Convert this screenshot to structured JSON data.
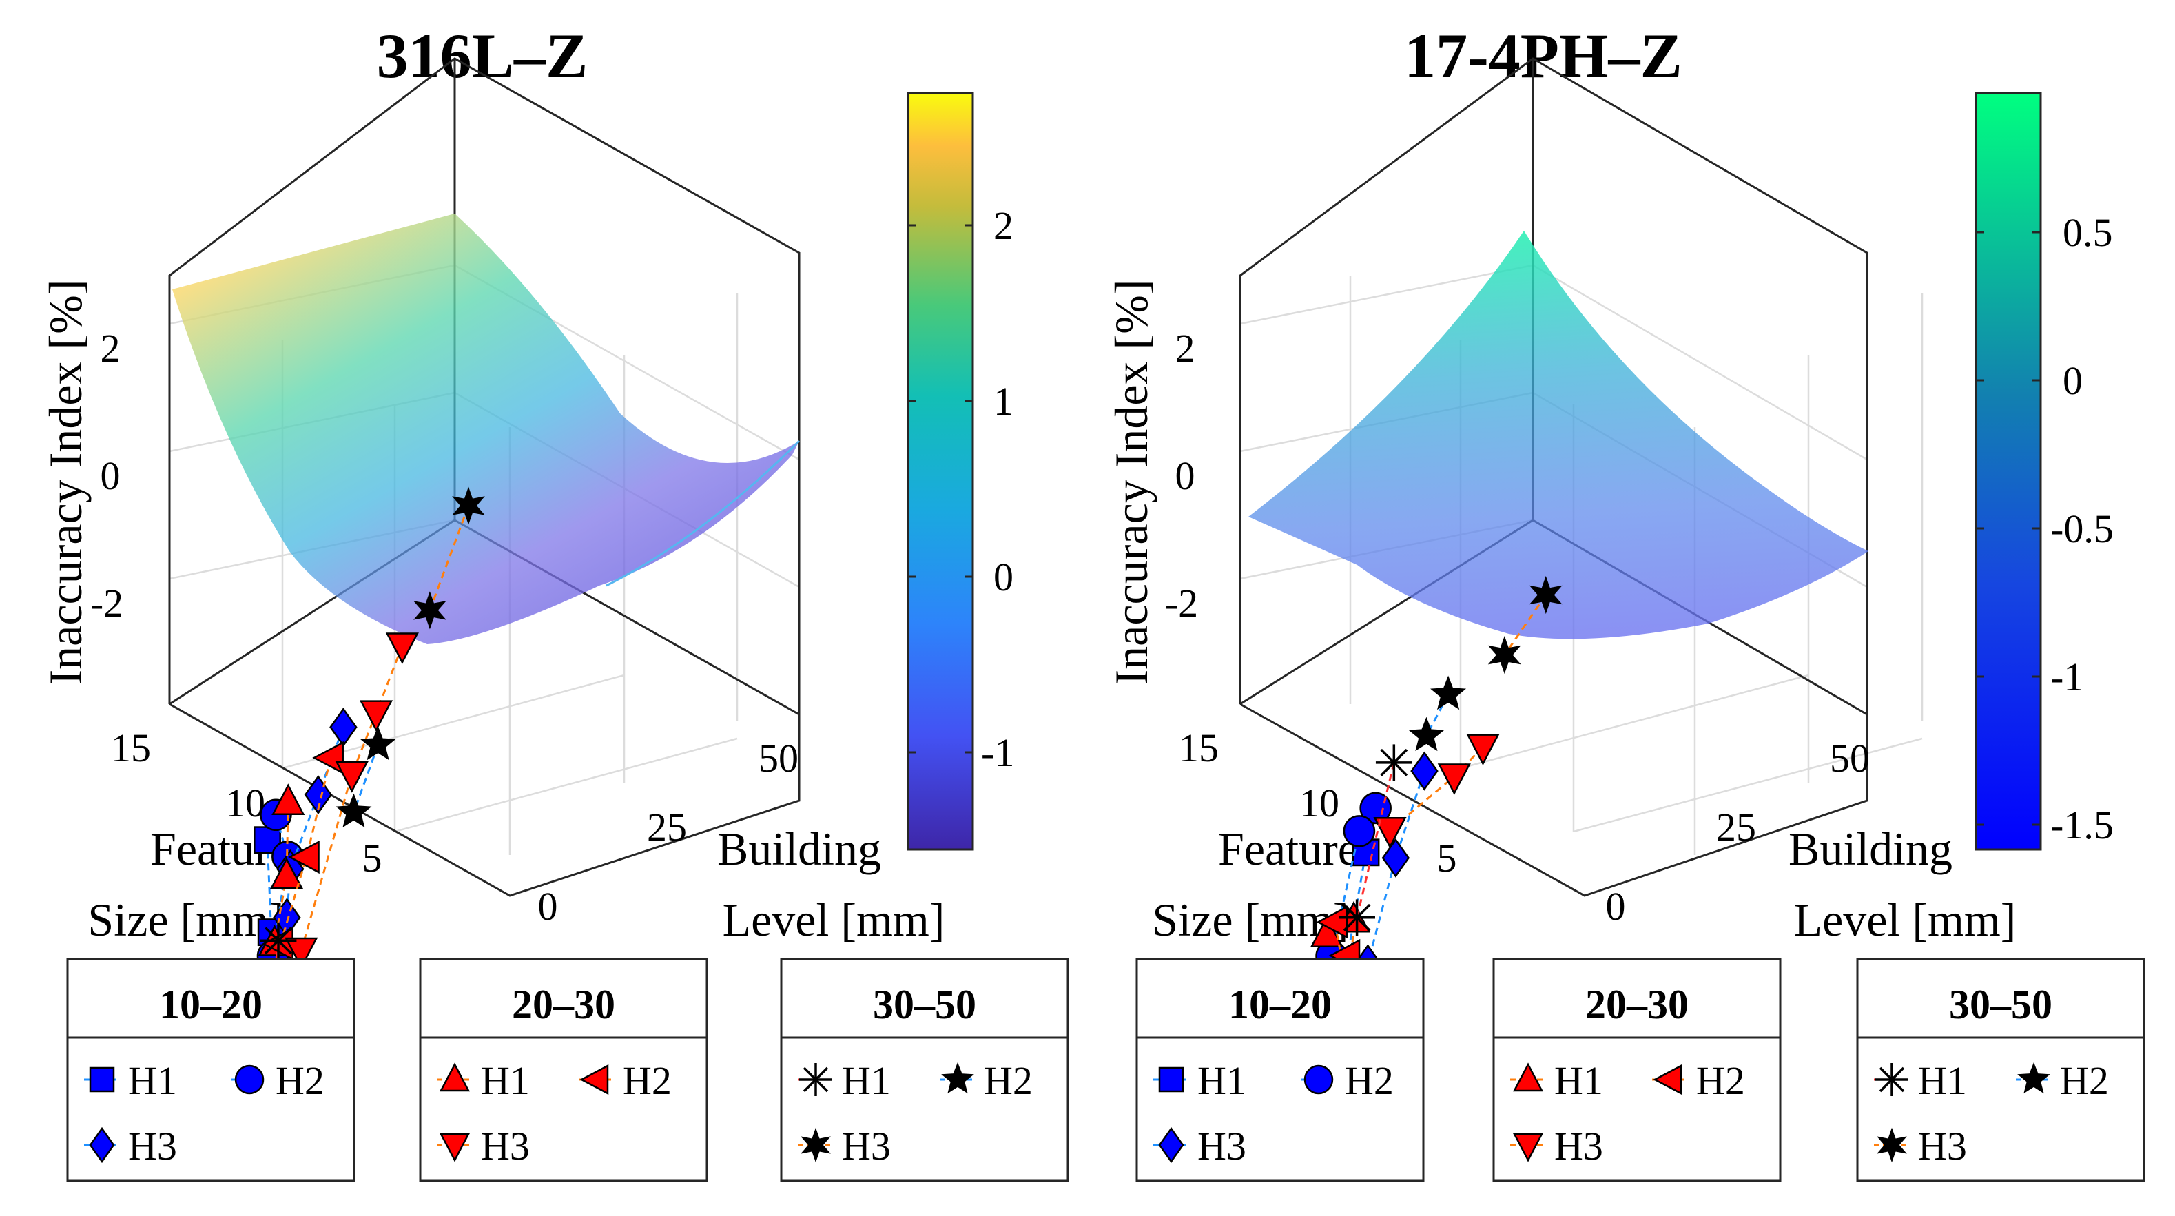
{
  "chart_data": [
    {
      "type": "surface3d",
      "title": "316L–Z",
      "zlabel": "Inaccuracy Index [%]",
      "xlabel": [
        "Feature",
        "Size [mm]"
      ],
      "ylabel": [
        "Building",
        "Level [mm]"
      ],
      "x_ticks": [
        "15",
        "10",
        "5"
      ],
      "y_ticks": [
        "0",
        "25",
        "50"
      ],
      "z_ticks": [
        "2",
        "0",
        "-2"
      ],
      "zlim": [
        -3.2,
        3
      ],
      "colorbar": {
        "ticks": [
          "2",
          "1",
          "0",
          "-1"
        ],
        "range": [
          -1.6,
          2.7
        ],
        "colormap": "parula"
      },
      "series": [
        {
          "group": "10–20",
          "name": "H1",
          "marker": "square",
          "color": "#0000ff",
          "line": "#1e90ff",
          "points": [
            [
              5,
              3,
              -2.8
            ],
            [
              4,
              28,
              -1.6
            ],
            [
              3,
              42,
              -1.7
            ],
            [
              2.5,
              52,
              0.3
            ]
          ]
        },
        {
          "group": "10–20",
          "name": "H2",
          "marker": "circle",
          "color": "#0000ff",
          "line": "#1e90ff",
          "points": [
            [
              5.5,
              2,
              -2.6
            ],
            [
              5,
              25,
              -0.9
            ],
            [
              3.5,
              40,
              -0.7
            ],
            [
              2,
              55,
              -0.7
            ]
          ]
        },
        {
          "group": "10–20",
          "name": "H3",
          "marker": "diamond",
          "color": "#0000ff",
          "line": "#1e90ff",
          "points": [
            [
              9,
              3,
              -1.8
            ],
            [
              7,
              17,
              -1.1
            ],
            [
              5,
              28,
              -0.8
            ],
            [
              4,
              45,
              0.3
            ]
          ]
        },
        {
          "group": "20–30",
          "name": "H1",
          "marker": "triangle-up",
          "color": "#ff0000",
          "line": "#ff7f0e",
          "points": [
            [
              6,
              5,
              -2.2
            ],
            [
              5,
              24,
              -1.3
            ],
            [
              3.5,
              42,
              -0.3
            ]
          ]
        },
        {
          "group": "20–30",
          "name": "H2",
          "marker": "triangle-left",
          "color": "#ff0000",
          "line": "#ff7f0e",
          "points": [
            [
              8,
              10,
              -1.4
            ],
            [
              6,
              25,
              -1.1
            ],
            [
              4,
              38,
              -0.8
            ]
          ]
        },
        {
          "group": "20–30",
          "name": "H3",
          "marker": "triangle-down",
          "color": "#ff0000",
          "line": "#ff7f0e",
          "points": [
            [
              12,
              5,
              -0.9
            ],
            [
              10,
              18,
              -0.3
            ],
            [
              8,
              33,
              0.6
            ],
            [
              5,
              40,
              -0.9
            ]
          ]
        },
        {
          "group": "30–50",
          "name": "H1",
          "marker": "asterisk",
          "color": "#000000",
          "line": "#ff3030",
          "points": [
            [
              5,
              15,
              -3.2
            ],
            [
              3,
              40,
              -2.5
            ]
          ]
        },
        {
          "group": "30–50",
          "name": "H2",
          "marker": "star5",
          "color": "#000000",
          "line": "#1e90ff",
          "points": [
            [
              10,
              20,
              -0.6
            ],
            [
              8,
              35,
              0.2
            ]
          ]
        },
        {
          "group": "30–50",
          "name": "H3",
          "marker": "star6",
          "color": "#000000",
          "line": "#ff7f0e",
          "points": [
            [
              15,
              15,
              1.7
            ],
            [
              12,
              35,
              2.6
            ]
          ]
        }
      ],
      "legend_groups": [
        {
          "title": "10–20",
          "items": [
            "H1",
            "H2",
            "H3"
          ]
        },
        {
          "title": "20–30",
          "items": [
            "H1",
            "H2",
            "H3"
          ]
        },
        {
          "title": "30–50",
          "items": [
            "H1",
            "H2",
            "H3"
          ]
        }
      ]
    },
    {
      "type": "surface3d",
      "title": "17-4PH–Z",
      "zlabel": "Inaccuracy Index [%]",
      "xlabel": [
        "Feature",
        "Size [mm]"
      ],
      "ylabel": [
        "Building",
        "Level [mm]"
      ],
      "x_ticks": [
        "15",
        "10",
        "5"
      ],
      "y_ticks": [
        "0",
        "25",
        "50"
      ],
      "z_ticks": [
        "2",
        "0",
        "-2"
      ],
      "zlim": [
        -3.2,
        3
      ],
      "colorbar": {
        "ticks": [
          "0.5",
          "0",
          "-0.5",
          "-1",
          "-1.5"
        ],
        "range": [
          -1.6,
          0.95
        ],
        "colormap": "winter"
      },
      "series": [
        {
          "group": "10–20",
          "name": "H1",
          "marker": "square",
          "color": "#0000ff",
          "line": "#1e90ff",
          "points": [
            [
              6,
              10,
              -2.5
            ],
            [
              4,
              30,
              -2.1
            ],
            [
              3,
              50,
              -2.3
            ],
            [
              2,
              52,
              -1.3
            ]
          ]
        },
        {
          "group": "10–20",
          "name": "H2",
          "marker": "circle",
          "color": "#0000ff",
          "line": "#1e90ff",
          "points": [
            [
              6.5,
              10,
              -1.9
            ],
            [
              5,
              25,
              -0.5
            ],
            [
              3,
              38,
              -0.8
            ],
            [
              2,
              55,
              -0.5
            ]
          ]
        },
        {
          "group": "10–20",
          "name": "H3",
          "marker": "diamond",
          "color": "#0000ff",
          "line": "#1e90ff",
          "points": [
            [
              9,
              10,
              -1.8
            ],
            [
              7,
              22,
              -1.6
            ],
            [
              5,
              35,
              -1.6
            ],
            [
              3.5,
              45,
              -0.6
            ]
          ]
        },
        {
          "group": "20–30",
          "name": "H1",
          "marker": "triangle-up",
          "color": "#ff0000",
          "line": "#ff7f0e",
          "points": [
            [
              4,
              10,
              -3.4
            ],
            [
              4.5,
              30,
              -1.3
            ],
            [
              3.5,
              50,
              0.2
            ]
          ]
        },
        {
          "group": "20–30",
          "name": "H2",
          "marker": "triangle-left",
          "color": "#ff0000",
          "line": "#ff7f0e",
          "points": [
            [
              4.5,
              8,
              -3.5
            ],
            [
              4,
              35,
              -1.9
            ],
            [
              3.5,
              45,
              -0.2
            ]
          ]
        },
        {
          "group": "20–30",
          "name": "H3",
          "marker": "triangle-down",
          "color": "#ff0000",
          "line": "#ff7f0e",
          "points": [
            [
              12,
              10,
              -2.0
            ],
            [
              10,
              22,
              -0.9
            ],
            [
              6,
              38,
              0.6
            ]
          ]
        },
        {
          "group": "30–50",
          "name": "H1",
          "marker": "asterisk",
          "color": "#000000",
          "line": "#ff3030",
          "points": [
            [
              7,
              20,
              -0.3
            ],
            [
              4,
              45,
              0.3
            ]
          ]
        },
        {
          "group": "30–50",
          "name": "H2",
          "marker": "star5",
          "color": "#000000",
          "line": "#1e90ff",
          "points": [
            [
              10,
              15,
              -0.3
            ],
            [
              8,
              35,
              1.4
            ]
          ]
        },
        {
          "group": "30–50",
          "name": "H3",
          "marker": "star6",
          "color": "#000000",
          "line": "#ff7f0e",
          "points": [
            [
              15,
              15,
              0.3
            ],
            [
              12,
              35,
              1.9
            ]
          ]
        }
      ],
      "legend_groups": [
        {
          "title": "10–20",
          "items": [
            "H1",
            "H2",
            "H3"
          ]
        },
        {
          "title": "20–30",
          "items": [
            "H1",
            "H2",
            "H3"
          ]
        },
        {
          "title": "30–50",
          "items": [
            "H1",
            "H2",
            "H3"
          ]
        }
      ]
    }
  ]
}
